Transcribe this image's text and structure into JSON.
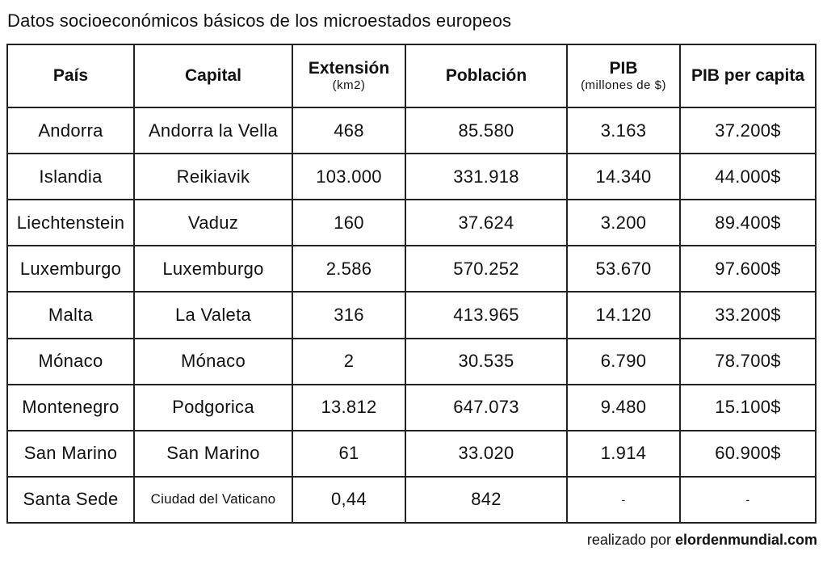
{
  "title": "Datos socioeconómicos básicos de los microestados europeos",
  "headers": [
    {
      "main": "País",
      "sub": ""
    },
    {
      "main": "Capital",
      "sub": ""
    },
    {
      "main": "Extensión",
      "sub": "(km2)"
    },
    {
      "main": "Población",
      "sub": ""
    },
    {
      "main": "PIB",
      "sub": "(millones de $)"
    },
    {
      "main": "PIB per capita",
      "sub": ""
    }
  ],
  "rows": [
    [
      "Andorra",
      "Andorra la Vella",
      "468",
      "85.580",
      "3.163",
      "37.200$"
    ],
    [
      "Islandia",
      "Reikiavik",
      "103.000",
      "331.918",
      "14.340",
      "44.000$"
    ],
    [
      "Liechtenstein",
      "Vaduz",
      "160",
      "37.624",
      "3.200",
      "89.400$"
    ],
    [
      "Luxemburgo",
      "Luxemburgo",
      "2.586",
      "570.252",
      "53.670",
      "97.600$"
    ],
    [
      "Malta",
      "La Valeta",
      "316",
      "413.965",
      "14.120",
      "33.200$"
    ],
    [
      "Mónaco",
      "Mónaco",
      "2",
      "30.535",
      "6.790",
      "78.700$"
    ],
    [
      "Montenegro",
      "Podgorica",
      "13.812",
      "647.073",
      "9.480",
      "15.100$"
    ],
    [
      "San Marino",
      "San Marino",
      "61",
      "33.020",
      "1.914",
      "60.900$"
    ],
    [
      "Santa Sede",
      "Ciudad del Vaticano",
      "0,44",
      "842",
      "-",
      "-"
    ]
  ],
  "credit": {
    "prefix": "realizado por ",
    "site": "elordenmundial.com"
  }
}
